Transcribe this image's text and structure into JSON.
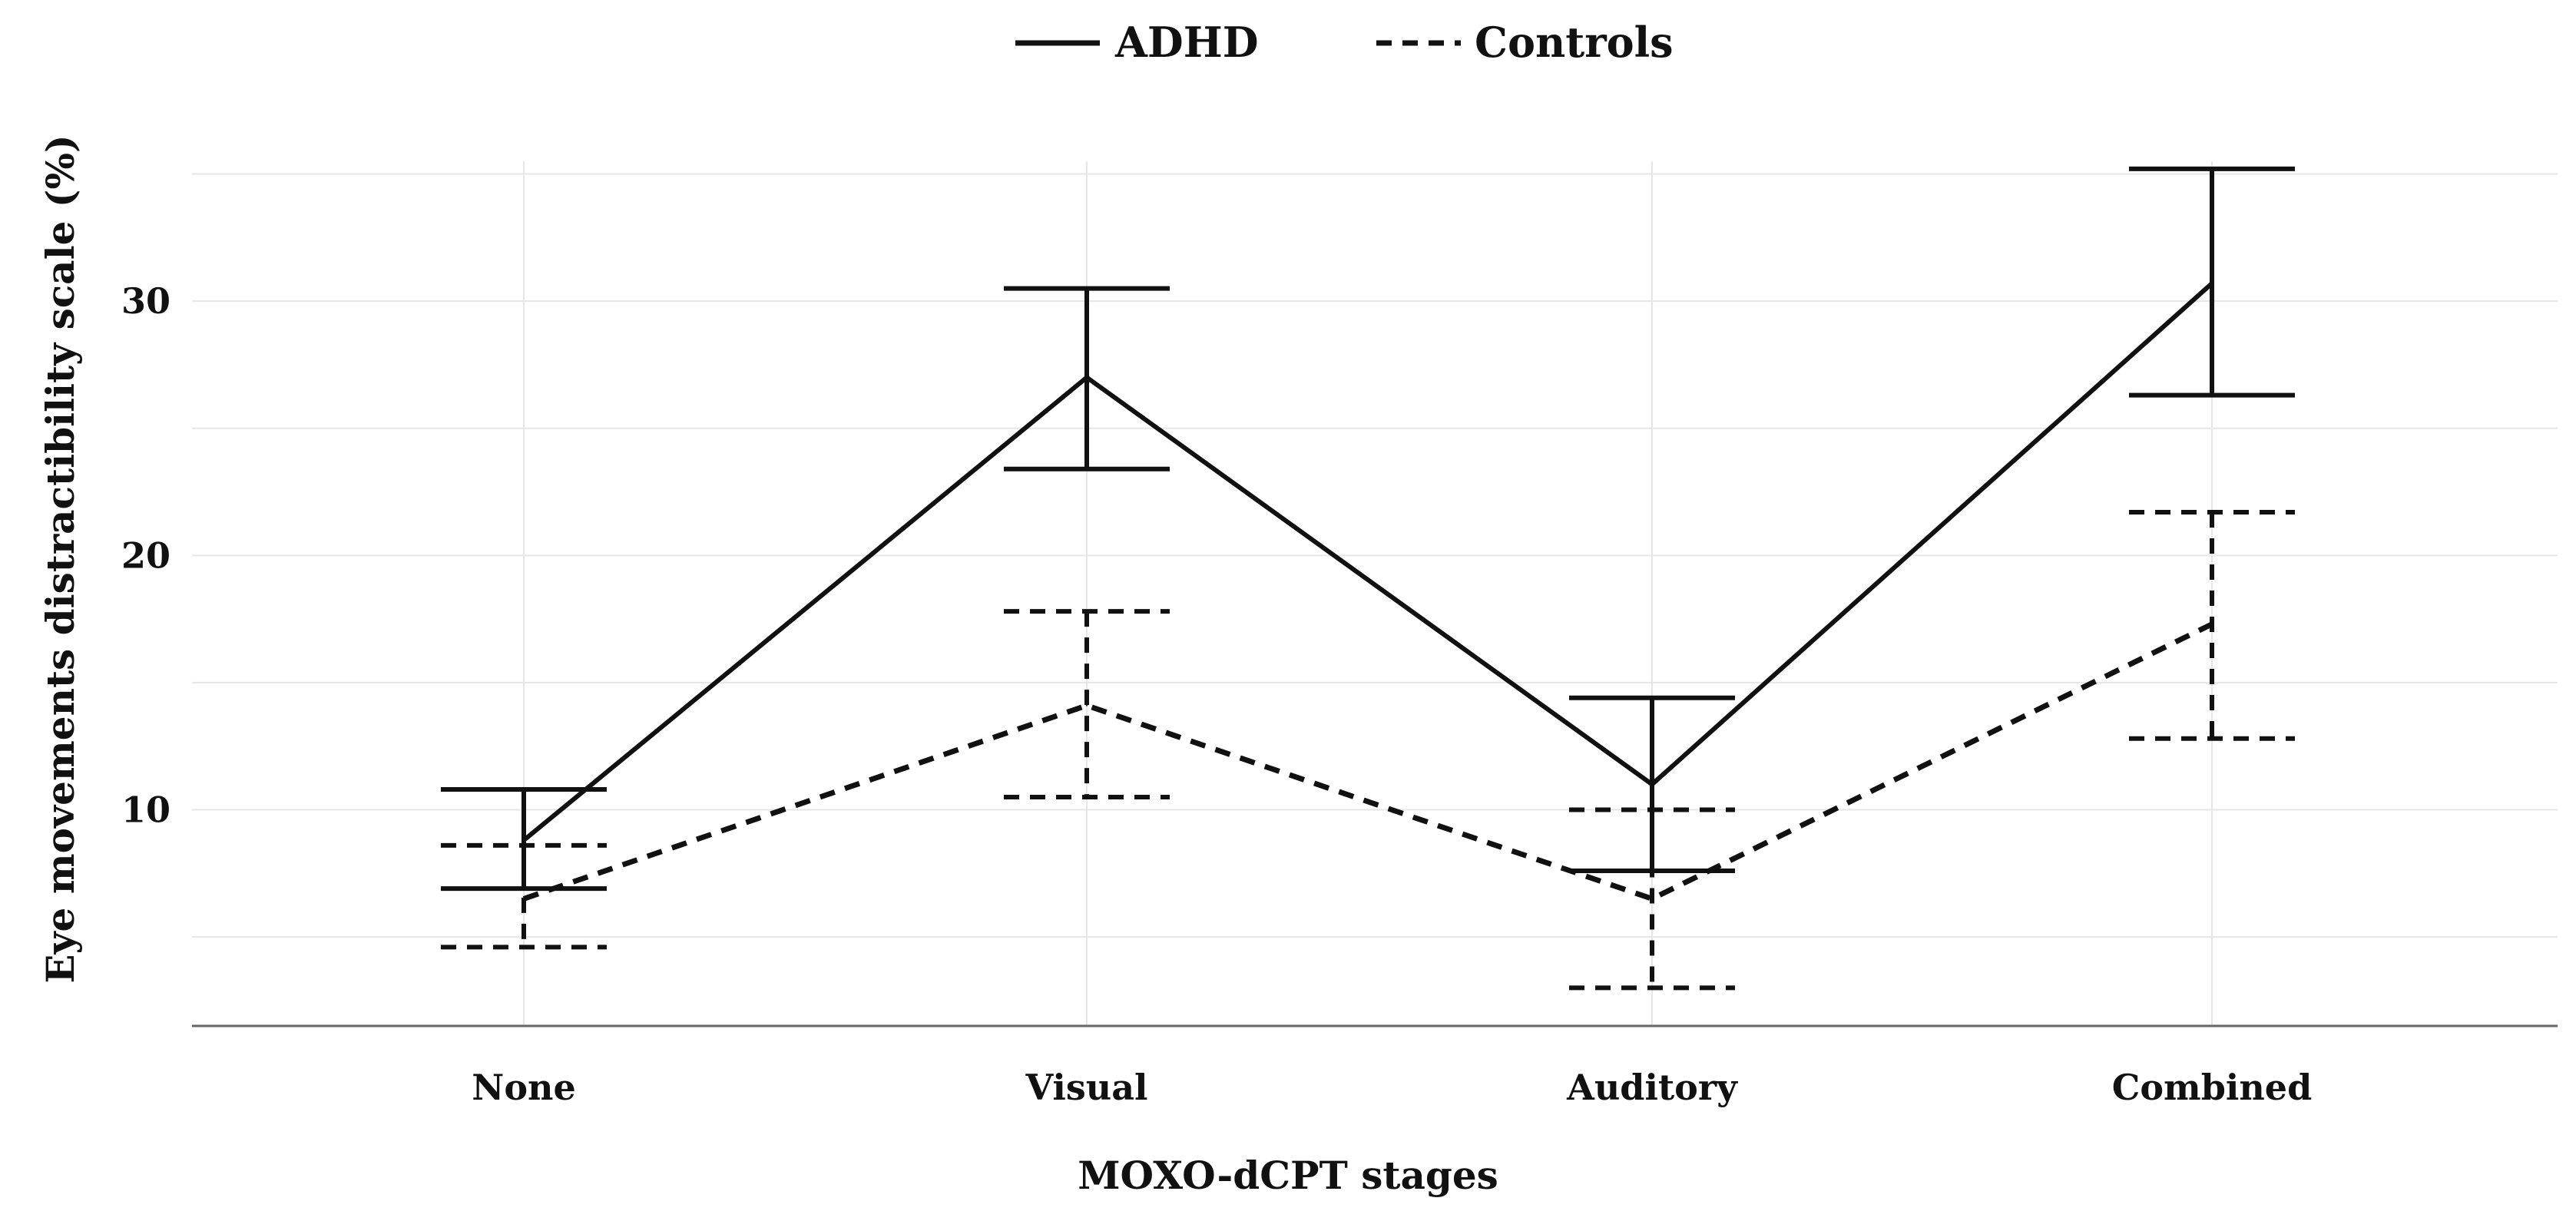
{
  "chart_data": {
    "type": "line",
    "title": "",
    "xlabel": "MOXO-dCPT stages",
    "ylabel": "Eye movements distractibility scale (%)",
    "categories": [
      "None",
      "Visual",
      "Auditory",
      "Combined"
    ],
    "yticks": [
      10,
      20,
      30
    ],
    "ylim": [
      1.5,
      35.5
    ],
    "grid": true,
    "legend_position": "top-center",
    "series": [
      {
        "name": "ADHD",
        "line_style": "solid",
        "color": "#111111",
        "values": [
          8.8,
          27.0,
          11.0,
          30.7
        ],
        "error_low": [
          6.9,
          23.4,
          7.6,
          26.3
        ],
        "error_high": [
          10.8,
          30.5,
          14.4,
          35.2
        ]
      },
      {
        "name": "Controls",
        "line_style": "dashed",
        "color": "#111111",
        "values": [
          6.5,
          14.1,
          6.5,
          17.3
        ],
        "error_low": [
          4.6,
          10.5,
          3.0,
          12.8
        ],
        "error_high": [
          8.6,
          17.8,
          10.0,
          21.7
        ]
      }
    ]
  }
}
